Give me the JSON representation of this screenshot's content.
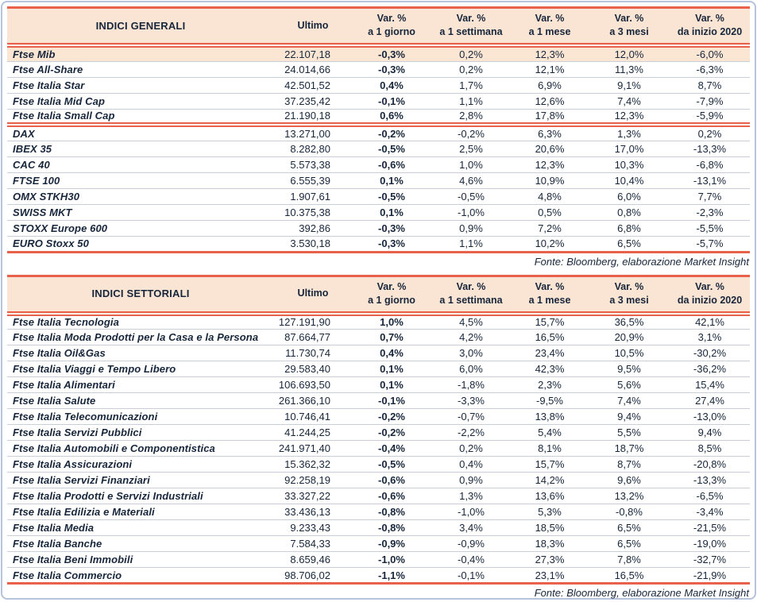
{
  "colors": {
    "accent_red": "#EA614B",
    "header_bg": "#FAE4D3",
    "highlight_bg": "#FBE5D3",
    "outer_border": "#B6C3DB",
    "row_line": "#C9CFD9",
    "text_dark": "#17263B"
  },
  "tables": [
    {
      "title": "INDICI GENERALI",
      "col_headers": {
        "ultimo": "Ultimo",
        "var_cols": [
          {
            "line1": "Var. %",
            "line2": "a 1 giorno"
          },
          {
            "line1": "Var. %",
            "line2": "a 1 settimana"
          },
          {
            "line1": "Var. %",
            "line2": "a 1 mese"
          },
          {
            "line1": "Var. %",
            "line2": "a 3 mesi"
          },
          {
            "line1": "Var. %",
            "line2": "da inizio 2020"
          }
        ]
      },
      "highlight_first_row": true,
      "groups": [
        {
          "rows": [
            [
              "Ftse Mib",
              "22.107,18",
              "-0,3%",
              "0,2%",
              "12,3%",
              "12,0%",
              "-6,0%"
            ],
            [
              "Ftse All-Share",
              "24.014,66",
              "-0,3%",
              "0,2%",
              "12,1%",
              "11,3%",
              "-6,3%"
            ],
            [
              "Ftse Italia Star",
              "42.501,52",
              "0,4%",
              "1,7%",
              "6,9%",
              "9,1%",
              "8,7%"
            ],
            [
              "Ftse Italia Mid Cap",
              "37.235,42",
              "-0,1%",
              "1,1%",
              "12,6%",
              "7,4%",
              "-7,9%"
            ],
            [
              "Ftse Italia Small Cap",
              "21.190,18",
              "0,6%",
              "2,8%",
              "17,8%",
              "12,3%",
              "-5,9%"
            ]
          ]
        },
        {
          "rows": [
            [
              "DAX",
              "13.271,00",
              "-0,2%",
              "-0,2%",
              "6,3%",
              "1,3%",
              "0,2%"
            ],
            [
              "IBEX 35",
              "8.282,80",
              "-0,5%",
              "2,5%",
              "20,6%",
              "17,0%",
              "-13,3%"
            ],
            [
              "CAC 40",
              "5.573,38",
              "-0,6%",
              "1,0%",
              "12,3%",
              "10,3%",
              "-6,8%"
            ],
            [
              "FTSE 100",
              "6.555,39",
              "0,1%",
              "4,6%",
              "10,9%",
              "10,4%",
              "-13,1%"
            ],
            [
              "OMX STKH30",
              "1.907,61",
              "-0,5%",
              "-0,5%",
              "4,8%",
              "6,0%",
              "7,7%"
            ],
            [
              "SWISS MKT",
              "10.375,38",
              "0,1%",
              "-1,0%",
              "0,5%",
              "0,8%",
              "-2,3%"
            ],
            [
              "STOXX Europe 600",
              "392,86",
              "-0,3%",
              "0,9%",
              "7,2%",
              "6,8%",
              "-5,5%"
            ],
            [
              "EURO Stoxx 50",
              "3.530,18",
              "-0,3%",
              "1,1%",
              "10,2%",
              "6,5%",
              "-5,7%"
            ]
          ]
        }
      ],
      "source": "Fonte: Bloomberg, elaborazione Market Insight"
    },
    {
      "title": "INDICI SETTORIALI",
      "col_headers": {
        "ultimo": "Ultimo",
        "var_cols": [
          {
            "line1": "Var. %",
            "line2": "a 1 giorno"
          },
          {
            "line1": "Var. %",
            "line2": "a 1 settimana"
          },
          {
            "line1": "Var. %",
            "line2": "a 1 mese"
          },
          {
            "line1": "Var. %",
            "line2": "a 3 mesi"
          },
          {
            "line1": "Var. %",
            "line2": "da inizio 2020"
          }
        ]
      },
      "highlight_first_row": false,
      "groups": [
        {
          "rows": [
            [
              "Ftse Italia Tecnologia",
              "127.191,90",
              "1,0%",
              "4,5%",
              "15,7%",
              "36,5%",
              "42,1%"
            ],
            [
              "Ftse Italia Moda Prodotti per la Casa e la Persona",
              "87.664,77",
              "0,7%",
              "4,2%",
              "16,5%",
              "20,9%",
              "3,1%"
            ],
            [
              "Ftse Italia Oil&Gas",
              "11.730,74",
              "0,4%",
              "3,0%",
              "23,4%",
              "10,5%",
              "-30,2%"
            ],
            [
              "Ftse Italia Viaggi e Tempo Libero",
              "29.583,40",
              "0,1%",
              "6,0%",
              "42,3%",
              "9,5%",
              "-36,2%"
            ],
            [
              "Ftse Italia Alimentari",
              "106.693,50",
              "0,1%",
              "-1,8%",
              "2,3%",
              "5,6%",
              "15,4%"
            ],
            [
              "Ftse Italia Salute",
              "261.366,10",
              "-0,1%",
              "-3,3%",
              "-9,5%",
              "7,4%",
              "27,4%"
            ],
            [
              "Ftse Italia Telecomunicazioni",
              "10.746,41",
              "-0,2%",
              "-0,7%",
              "13,8%",
              "9,4%",
              "-13,0%"
            ],
            [
              "Ftse Italia Servizi Pubblici",
              "41.244,25",
              "-0,2%",
              "-2,2%",
              "5,4%",
              "5,5%",
              "9,4%"
            ],
            [
              "Ftse Italia Automobili e Componentistica",
              "241.971,40",
              "-0,4%",
              "0,2%",
              "8,1%",
              "18,7%",
              "8,5%"
            ],
            [
              "Ftse Italia Assicurazioni",
              "15.362,32",
              "-0,5%",
              "0,4%",
              "15,7%",
              "8,7%",
              "-20,8%"
            ],
            [
              "Ftse Italia Servizi Finanziari",
              "92.258,19",
              "-0,6%",
              "0,9%",
              "14,2%",
              "9,6%",
              "-13,3%"
            ],
            [
              "Ftse Italia Prodotti e Servizi Industriali",
              "33.327,22",
              "-0,6%",
              "1,3%",
              "13,6%",
              "13,2%",
              "-6,5%"
            ],
            [
              "Ftse Italia Edilizia e Materiali",
              "33.436,13",
              "-0,8%",
              "-1,0%",
              "5,3%",
              "-0,8%",
              "-3,4%"
            ],
            [
              "Ftse Italia Media",
              "9.233,43",
              "-0,8%",
              "3,4%",
              "18,5%",
              "6,5%",
              "-21,5%"
            ],
            [
              "Ftse Italia Banche",
              "7.584,33",
              "-0,9%",
              "-0,9%",
              "18,3%",
              "6,5%",
              "-19,0%"
            ],
            [
              "Ftse Italia Beni Immobili",
              "8.659,46",
              "-1,0%",
              "-0,4%",
              "27,3%",
              "7,8%",
              "-32,7%"
            ],
            [
              "Ftse Italia Commercio",
              "98.706,02",
              "-1,1%",
              "-0,1%",
              "23,1%",
              "16,5%",
              "-21,9%"
            ]
          ]
        }
      ],
      "source": "Fonte: Bloomberg, elaborazione Market Insight"
    }
  ]
}
